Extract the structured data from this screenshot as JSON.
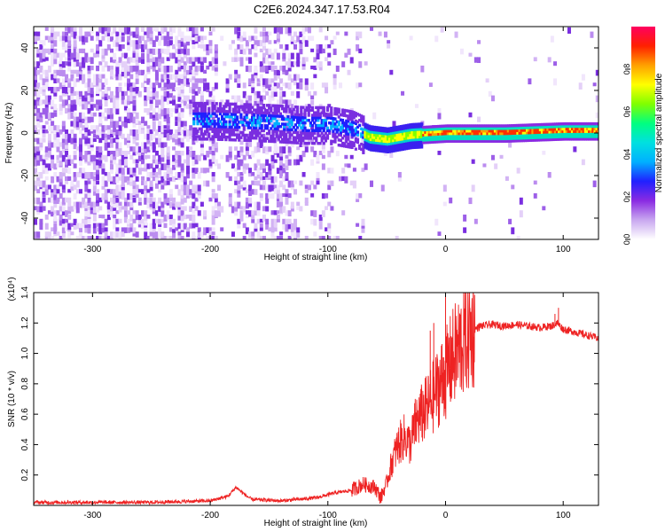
{
  "figure_title": "C2E6.2024.347.17.53.R04",
  "chart_data": [
    {
      "type": "heatmap",
      "title": "",
      "xlabel": "Height of straight line (km)",
      "ylabel": "Frequency (Hz)",
      "xlim": [
        -350,
        130
      ],
      "ylim": [
        -50,
        50
      ],
      "x_ticks": [
        -300,
        -200,
        -100,
        0,
        100
      ],
      "y_ticks": [
        -40,
        -20,
        0,
        20,
        40
      ],
      "colorbar": {
        "label": "Normalized spectral amplitude",
        "range": [
          0,
          1
        ],
        "ticks": [
          0.0,
          0.2,
          0.4,
          0.6,
          0.8
        ],
        "tick_labels": [
          "0.0",
          "0.2",
          "0.4",
          "0.6",
          "0.8"
        ],
        "colors": [
          "#ffffff",
          "#c9a8f0",
          "#8a2be2",
          "#2020ff",
          "#00b0ff",
          "#00e0e0",
          "#00ff80",
          "#80ff00",
          "#ffff00",
          "#ffa000",
          "#ff2000",
          "#ff0060"
        ]
      },
      "ridge": {
        "description_points_x": [
          -200,
          -150,
          -120,
          -100,
          -80,
          -65,
          -50,
          -30,
          0,
          50,
          100,
          130
        ],
        "description_points_freq": [
          6,
          5,
          4,
          4,
          2,
          -2,
          -3,
          -1,
          0,
          0,
          1,
          1
        ]
      }
    },
    {
      "type": "line",
      "title": "",
      "xlabel": "Height of straight line (km)",
      "ylabel": "SNR (10 * v/v)",
      "y_multiplier_label": "(x10⁴)",
      "xlim": [
        -350,
        130
      ],
      "ylim": [
        0,
        1.4
      ],
      "x_ticks": [
        -300,
        -200,
        -100,
        0,
        100
      ],
      "y_ticks": [
        0.2,
        0.4,
        0.6,
        0.8,
        1.0,
        1.2,
        1.4
      ],
      "color": "#ee2222",
      "series": [
        {
          "name": "SNR",
          "x": [
            -350,
            -250,
            -200,
            -185,
            -178,
            -172,
            -165,
            -140,
            -110,
            -95,
            -80,
            -70,
            -60,
            -55,
            -50,
            -45,
            -40,
            -35,
            -30,
            -25,
            -20,
            -15,
            -10,
            -5,
            0,
            5,
            10,
            15,
            20,
            25,
            30,
            40,
            50,
            60,
            70,
            80,
            90,
            95,
            100,
            110,
            120,
            130
          ],
          "y": [
            0.02,
            0.02,
            0.03,
            0.06,
            0.12,
            0.08,
            0.04,
            0.03,
            0.05,
            0.08,
            0.1,
            0.14,
            0.12,
            0.05,
            0.15,
            0.3,
            0.4,
            0.45,
            0.4,
            0.55,
            0.6,
            0.65,
            0.72,
            0.8,
            0.86,
            0.95,
            1.02,
            1.08,
            1.13,
            1.16,
            1.18,
            1.19,
            1.18,
            1.19,
            1.18,
            1.17,
            1.18,
            1.2,
            1.16,
            1.14,
            1.12,
            1.1
          ]
        }
      ],
      "spikes": [
        {
          "x": 0,
          "y": 1.42
        },
        {
          "x": -10,
          "y": 1.2
        },
        {
          "x": -13,
          "y": 1.15
        },
        {
          "x": 96,
          "y": 1.3
        },
        {
          "x": 93,
          "y": 1.26
        }
      ]
    }
  ]
}
